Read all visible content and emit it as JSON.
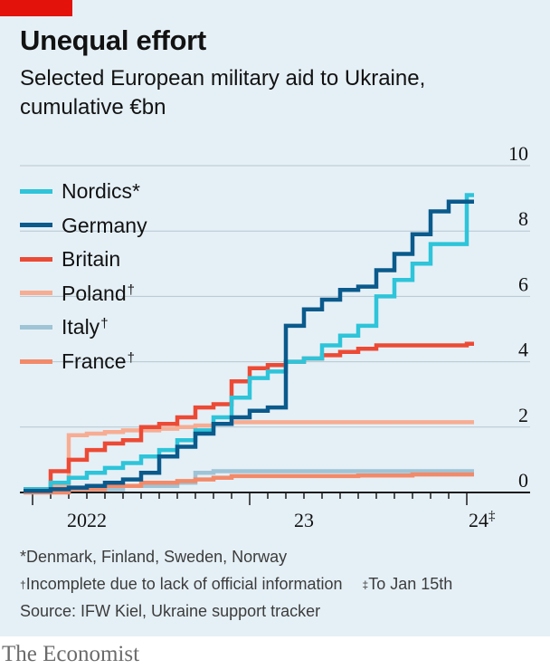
{
  "header": {
    "title": "Unequal effort",
    "subtitle": "Selected European military aid to Ukraine, cumulative €bn"
  },
  "legend": [
    {
      "label": "Nordics",
      "mark": "*",
      "color": "#2ec4d9"
    },
    {
      "label": "Germany",
      "mark": "",
      "color": "#0a5a8c"
    },
    {
      "label": "Britain",
      "mark": "",
      "color": "#ec4a35"
    },
    {
      "label": "Poland",
      "mark": "†",
      "color": "#f7ad93"
    },
    {
      "label": "Italy",
      "mark": "†",
      "color": "#9ec4d6"
    },
    {
      "label": "France",
      "mark": "†",
      "color": "#f28a6a"
    }
  ],
  "notes": {
    "nordics": "*Denmark, Finland, Sweden, Norway",
    "incomplete_mark": "†",
    "incomplete": "Incomplete due to lack of official information",
    "to_date_mark": "‡",
    "to_date": "To Jan 15th",
    "source": "Source: IFW Kiel, Ukraine support tracker"
  },
  "footer": {
    "brand": "The Economist"
  },
  "chart_data": {
    "type": "line",
    "step": true,
    "x_unit": "month",
    "xlim": [
      "2022-01",
      "2024-01"
    ],
    "ylim": [
      0,
      10
    ],
    "y_ticks": [
      0,
      2,
      4,
      6,
      8,
      10
    ],
    "grid": true,
    "legend_position": "top-left",
    "x_ticks": [
      {
        "label": "2022",
        "at": "2022-01",
        "mark": ""
      },
      {
        "label": "23",
        "at": "2023-01",
        "mark": ""
      },
      {
        "label": "24",
        "at": "2024-01",
        "mark": "‡"
      }
    ],
    "x_month_ticks": [
      "2022-01",
      "2022-02",
      "2022-03",
      "2022-04",
      "2022-05",
      "2022-06",
      "2022-07",
      "2022-08",
      "2022-09",
      "2022-10",
      "2022-11",
      "2022-12",
      "2023-01",
      "2023-02",
      "2023-03",
      "2023-04",
      "2023-05",
      "2023-06",
      "2023-07",
      "2023-08",
      "2023-09",
      "2023-10",
      "2023-11",
      "2023-12",
      "2024-01"
    ],
    "series": [
      {
        "name": "Poland",
        "color": "#f7ad93",
        "points": [
          [
            "2022-01",
            0.1
          ],
          [
            "2022-02",
            0.2
          ],
          [
            "2022-03",
            1.75
          ],
          [
            "2022-04",
            1.8
          ],
          [
            "2022-05",
            1.85
          ],
          [
            "2022-06",
            1.9
          ],
          [
            "2022-07",
            1.9
          ],
          [
            "2022-08",
            1.95
          ],
          [
            "2022-09",
            2.0
          ],
          [
            "2022-10",
            2.05
          ],
          [
            "2022-11",
            2.1
          ],
          [
            "2022-12",
            2.15
          ],
          [
            "2023-01",
            2.15
          ],
          [
            "2023-06",
            2.15
          ],
          [
            "2024-01",
            2.15
          ]
        ]
      },
      {
        "name": "Italy",
        "color": "#9ec4d6",
        "points": [
          [
            "2022-01",
            0.05
          ],
          [
            "2022-03",
            0.1
          ],
          [
            "2022-06",
            0.2
          ],
          [
            "2022-09",
            0.3
          ],
          [
            "2022-10",
            0.6
          ],
          [
            "2022-11",
            0.65
          ],
          [
            "2022-12",
            0.65
          ],
          [
            "2023-01",
            0.65
          ],
          [
            "2024-01",
            0.65
          ]
        ]
      },
      {
        "name": "France",
        "color": "#f28a6a",
        "points": [
          [
            "2022-01",
            0.0
          ],
          [
            "2022-03",
            0.1
          ],
          [
            "2022-05",
            0.2
          ],
          [
            "2022-07",
            0.3
          ],
          [
            "2022-09",
            0.35
          ],
          [
            "2022-10",
            0.4
          ],
          [
            "2022-11",
            0.45
          ],
          [
            "2022-12",
            0.5
          ],
          [
            "2023-01",
            0.5
          ],
          [
            "2023-04",
            0.5
          ],
          [
            "2023-07",
            0.52
          ],
          [
            "2023-10",
            0.55
          ],
          [
            "2024-01",
            0.55
          ]
        ]
      },
      {
        "name": "Britain",
        "color": "#ec4a35",
        "points": [
          [
            "2022-01",
            0.1
          ],
          [
            "2022-02",
            0.65
          ],
          [
            "2022-03",
            1.0
          ],
          [
            "2022-04",
            1.3
          ],
          [
            "2022-05",
            1.5
          ],
          [
            "2022-06",
            1.6
          ],
          [
            "2022-07",
            2.0
          ],
          [
            "2022-08",
            2.1
          ],
          [
            "2022-09",
            2.3
          ],
          [
            "2022-10",
            2.6
          ],
          [
            "2022-11",
            2.7
          ],
          [
            "2022-12",
            3.4
          ],
          [
            "2023-01",
            3.8
          ],
          [
            "2023-02",
            3.9
          ],
          [
            "2023-03",
            4.0
          ],
          [
            "2023-04",
            4.1
          ],
          [
            "2023-05",
            4.2
          ],
          [
            "2023-06",
            4.3
          ],
          [
            "2023-07",
            4.4
          ],
          [
            "2023-08",
            4.5
          ],
          [
            "2023-09",
            4.5
          ],
          [
            "2023-10",
            4.5
          ],
          [
            "2023-11",
            4.5
          ],
          [
            "2024-01",
            4.55
          ]
        ]
      },
      {
        "name": "Nordics",
        "color": "#2ec4d9",
        "points": [
          [
            "2022-01",
            0.1
          ],
          [
            "2022-02",
            0.3
          ],
          [
            "2022-03",
            0.45
          ],
          [
            "2022-04",
            0.6
          ],
          [
            "2022-05",
            0.75
          ],
          [
            "2022-06",
            0.9
          ],
          [
            "2022-07",
            1.1
          ],
          [
            "2022-08",
            1.3
          ],
          [
            "2022-09",
            1.6
          ],
          [
            "2022-10",
            1.9
          ],
          [
            "2022-11",
            2.3
          ],
          [
            "2022-12",
            2.9
          ],
          [
            "2023-01",
            3.5
          ],
          [
            "2023-02",
            3.7
          ],
          [
            "2023-03",
            4.0
          ],
          [
            "2023-04",
            4.1
          ],
          [
            "2023-05",
            4.5
          ],
          [
            "2023-06",
            4.8
          ],
          [
            "2023-07",
            5.1
          ],
          [
            "2023-08",
            6.0
          ],
          [
            "2023-09",
            6.5
          ],
          [
            "2023-10",
            7.0
          ],
          [
            "2023-11",
            7.6
          ],
          [
            "2023-12",
            7.6
          ],
          [
            "2024-01",
            9.1
          ]
        ]
      },
      {
        "name": "Germany",
        "color": "#0a5a8c",
        "points": [
          [
            "2022-01",
            0.05
          ],
          [
            "2022-02",
            0.1
          ],
          [
            "2022-03",
            0.15
          ],
          [
            "2022-04",
            0.2
          ],
          [
            "2022-05",
            0.3
          ],
          [
            "2022-06",
            0.4
          ],
          [
            "2022-07",
            0.6
          ],
          [
            "2022-08",
            1.1
          ],
          [
            "2022-09",
            1.4
          ],
          [
            "2022-10",
            1.8
          ],
          [
            "2022-11",
            2.1
          ],
          [
            "2022-12",
            2.3
          ],
          [
            "2023-01",
            2.5
          ],
          [
            "2023-02",
            2.6
          ],
          [
            "2023-03",
            5.1
          ],
          [
            "2023-04",
            5.6
          ],
          [
            "2023-05",
            5.9
          ],
          [
            "2023-06",
            6.2
          ],
          [
            "2023-07",
            6.3
          ],
          [
            "2023-08",
            6.8
          ],
          [
            "2023-09",
            7.3
          ],
          [
            "2023-10",
            7.9
          ],
          [
            "2023-11",
            8.6
          ],
          [
            "2023-12",
            8.9
          ],
          [
            "2024-01",
            8.9
          ]
        ]
      }
    ]
  }
}
